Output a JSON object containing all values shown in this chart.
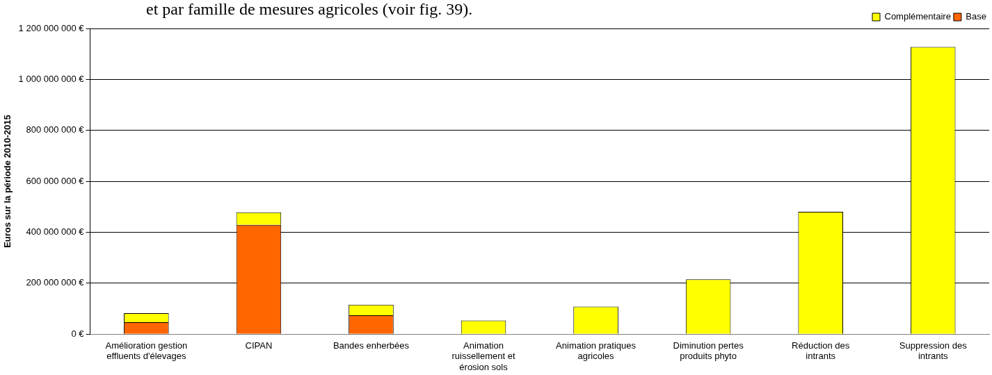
{
  "chart_data": {
    "type": "bar",
    "stacked": true,
    "ylabel": "Euros sur la période 2010-2015",
    "annotations": [
      "et par famille de mesures agricoles (voir fig. 39)."
    ],
    "categories": [
      "Amélioration gestion effluents d'élevages",
      "CIPAN",
      "Bandes enherbées",
      "Animation ruissellement et érosion sols",
      "Animation pratiques agricoles",
      "Diminution pertes produits phyto",
      "Réduction des intrants",
      "Suppression des intrants"
    ],
    "series": [
      {
        "name": "Base",
        "color": "#ff6600",
        "values": [
          47000000,
          429000000,
          74000000,
          0,
          0,
          0,
          0,
          0
        ]
      },
      {
        "name": "Complémentaire",
        "color": "#ffff00",
        "values": [
          35000000,
          49000000,
          42000000,
          54000000,
          108000000,
          215000000,
          480000000,
          1128000000
        ]
      }
    ],
    "ylim": [
      0,
      1200000000
    ],
    "yticks": [
      {
        "value": 0,
        "label": "0 €"
      },
      {
        "value": 200000000,
        "label": "200 000 000 €"
      },
      {
        "value": 400000000,
        "label": "400 000 000 €"
      },
      {
        "value": 600000000,
        "label": "600 000 000 €"
      },
      {
        "value": 800000000,
        "label": "800 000 000 €"
      },
      {
        "value": 1000000000,
        "label": "1 000 000 000 €"
      },
      {
        "value": 1200000000,
        "label": "1 200 000 000 €"
      }
    ],
    "grid": "y",
    "legend": "top right"
  }
}
